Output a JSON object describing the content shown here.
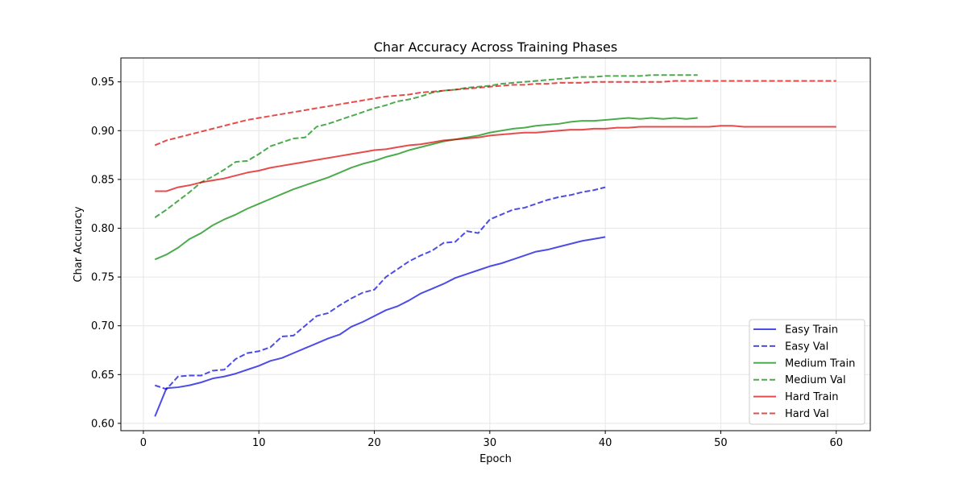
{
  "chart_data": {
    "type": "line",
    "title": "Char Accuracy Across Training Phases",
    "xlabel": "Epoch",
    "ylabel": "Char Accuracy",
    "xlim": [
      -1.95,
      62.95
    ],
    "ylim": [
      0.5925,
      0.9745
    ],
    "xticks": [
      0,
      10,
      20,
      30,
      40,
      50,
      60
    ],
    "yticks": [
      0.6,
      0.65,
      0.7,
      0.75,
      0.8,
      0.85,
      0.9,
      0.95
    ],
    "grid": true,
    "legend_position": "lower-right",
    "series": [
      {
        "name": "Easy Train",
        "color": "#0000dd",
        "style": "solid",
        "x": [
          1,
          2,
          3,
          4,
          5,
          6,
          7,
          8,
          9,
          10,
          11,
          12,
          13,
          14,
          15,
          16,
          17,
          18,
          19,
          20,
          21,
          22,
          23,
          24,
          25,
          26,
          27,
          28,
          29,
          30,
          31,
          32,
          33,
          34,
          35,
          36,
          37,
          38,
          39,
          40
        ],
        "y": [
          0.607,
          0.636,
          0.637,
          0.639,
          0.642,
          0.646,
          0.648,
          0.651,
          0.655,
          0.659,
          0.664,
          0.667,
          0.672,
          0.677,
          0.682,
          0.687,
          0.691,
          0.699,
          0.704,
          0.71,
          0.716,
          0.72,
          0.726,
          0.733,
          0.738,
          0.743,
          0.749,
          0.753,
          0.757,
          0.761,
          0.764,
          0.768,
          0.772,
          0.776,
          0.778,
          0.781,
          0.784,
          0.787,
          0.789,
          0.791
        ]
      },
      {
        "name": "Easy Val",
        "color": "#0000dd",
        "style": "dashed",
        "x": [
          1,
          2,
          3,
          4,
          5,
          6,
          7,
          8,
          9,
          10,
          11,
          12,
          13,
          14,
          15,
          16,
          17,
          18,
          19,
          20,
          21,
          22,
          23,
          24,
          25,
          26,
          27,
          28,
          29,
          30,
          31,
          32,
          33,
          34,
          35,
          36,
          37,
          38,
          39,
          40
        ],
        "y": [
          0.639,
          0.635,
          0.648,
          0.649,
          0.649,
          0.654,
          0.655,
          0.666,
          0.672,
          0.674,
          0.678,
          0.689,
          0.69,
          0.7,
          0.71,
          0.713,
          0.721,
          0.728,
          0.734,
          0.737,
          0.75,
          0.758,
          0.766,
          0.772,
          0.777,
          0.785,
          0.786,
          0.797,
          0.795,
          0.809,
          0.814,
          0.819,
          0.821,
          0.825,
          0.829,
          0.832,
          0.834,
          0.837,
          0.839,
          0.842
        ]
      },
      {
        "name": "Medium Train",
        "color": "#008800",
        "style": "solid",
        "x": [
          1,
          2,
          3,
          4,
          5,
          6,
          7,
          8,
          9,
          10,
          11,
          12,
          13,
          14,
          15,
          16,
          17,
          18,
          19,
          20,
          21,
          22,
          23,
          24,
          25,
          26,
          27,
          28,
          29,
          30,
          31,
          32,
          33,
          34,
          35,
          36,
          37,
          38,
          39,
          40,
          41,
          42,
          43,
          44,
          45,
          46,
          47,
          48
        ],
        "y": [
          0.768,
          0.773,
          0.78,
          0.789,
          0.795,
          0.803,
          0.809,
          0.814,
          0.82,
          0.825,
          0.83,
          0.835,
          0.84,
          0.844,
          0.848,
          0.852,
          0.857,
          0.862,
          0.866,
          0.869,
          0.873,
          0.876,
          0.88,
          0.883,
          0.886,
          0.889,
          0.891,
          0.893,
          0.895,
          0.898,
          0.9,
          0.902,
          0.903,
          0.905,
          0.906,
          0.907,
          0.909,
          0.91,
          0.91,
          0.911,
          0.912,
          0.913,
          0.912,
          0.913,
          0.912,
          0.913,
          0.912,
          0.913
        ]
      },
      {
        "name": "Medium Val",
        "color": "#008800",
        "style": "dashed",
        "x": [
          1,
          2,
          3,
          4,
          5,
          6,
          7,
          8,
          9,
          10,
          11,
          12,
          13,
          14,
          15,
          16,
          17,
          18,
          19,
          20,
          21,
          22,
          23,
          24,
          25,
          26,
          27,
          28,
          29,
          30,
          31,
          32,
          33,
          34,
          35,
          36,
          37,
          38,
          39,
          40,
          41,
          42,
          43,
          44,
          45,
          46,
          47,
          48
        ],
        "y": [
          0.811,
          0.819,
          0.828,
          0.837,
          0.847,
          0.853,
          0.86,
          0.868,
          0.869,
          0.876,
          0.884,
          0.888,
          0.892,
          0.893,
          0.904,
          0.907,
          0.911,
          0.915,
          0.919,
          0.923,
          0.926,
          0.93,
          0.932,
          0.935,
          0.939,
          0.941,
          0.942,
          0.944,
          0.945,
          0.946,
          0.948,
          0.949,
          0.95,
          0.951,
          0.952,
          0.953,
          0.954,
          0.955,
          0.955,
          0.956,
          0.956,
          0.956,
          0.956,
          0.957,
          0.957,
          0.957,
          0.957,
          0.957
        ]
      },
      {
        "name": "Hard Train",
        "color": "#dd0000",
        "style": "solid",
        "x": [
          1,
          2,
          3,
          4,
          5,
          6,
          7,
          8,
          9,
          10,
          11,
          12,
          13,
          14,
          15,
          16,
          17,
          18,
          19,
          20,
          21,
          22,
          23,
          24,
          25,
          26,
          27,
          28,
          29,
          30,
          31,
          32,
          33,
          34,
          35,
          36,
          37,
          38,
          39,
          40,
          41,
          42,
          43,
          44,
          45,
          46,
          47,
          48,
          49,
          50,
          51,
          52,
          53,
          54,
          55,
          56,
          57,
          58,
          59,
          60
        ],
        "y": [
          0.838,
          0.838,
          0.842,
          0.844,
          0.847,
          0.849,
          0.851,
          0.854,
          0.857,
          0.859,
          0.862,
          0.864,
          0.866,
          0.868,
          0.87,
          0.872,
          0.874,
          0.876,
          0.878,
          0.88,
          0.881,
          0.883,
          0.885,
          0.886,
          0.888,
          0.89,
          0.891,
          0.892,
          0.893,
          0.895,
          0.896,
          0.897,
          0.898,
          0.898,
          0.899,
          0.9,
          0.901,
          0.901,
          0.902,
          0.902,
          0.903,
          0.903,
          0.904,
          0.904,
          0.904,
          0.904,
          0.904,
          0.904,
          0.904,
          0.905,
          0.905,
          0.904,
          0.904,
          0.904,
          0.904,
          0.904,
          0.904,
          0.904,
          0.904,
          0.904
        ]
      },
      {
        "name": "Hard Val",
        "color": "#dd0000",
        "style": "dashed",
        "x": [
          1,
          2,
          3,
          4,
          5,
          6,
          7,
          8,
          9,
          10,
          11,
          12,
          13,
          14,
          15,
          16,
          17,
          18,
          19,
          20,
          21,
          22,
          23,
          24,
          25,
          26,
          27,
          28,
          29,
          30,
          31,
          32,
          33,
          34,
          35,
          36,
          37,
          38,
          39,
          40,
          41,
          42,
          43,
          44,
          45,
          46,
          47,
          48,
          49,
          50,
          51,
          52,
          53,
          54,
          55,
          56,
          57,
          58,
          59,
          60
        ],
        "y": [
          0.885,
          0.89,
          0.893,
          0.896,
          0.899,
          0.902,
          0.905,
          0.908,
          0.911,
          0.913,
          0.915,
          0.917,
          0.919,
          0.921,
          0.923,
          0.925,
          0.927,
          0.929,
          0.931,
          0.933,
          0.935,
          0.936,
          0.937,
          0.939,
          0.94,
          0.941,
          0.942,
          0.943,
          0.944,
          0.945,
          0.946,
          0.947,
          0.947,
          0.948,
          0.948,
          0.949,
          0.949,
          0.949,
          0.95,
          0.95,
          0.95,
          0.95,
          0.95,
          0.95,
          0.95,
          0.951,
          0.951,
          0.951,
          0.951,
          0.951,
          0.951,
          0.951,
          0.951,
          0.951,
          0.951,
          0.951,
          0.951,
          0.951,
          0.951,
          0.951
        ]
      }
    ]
  }
}
